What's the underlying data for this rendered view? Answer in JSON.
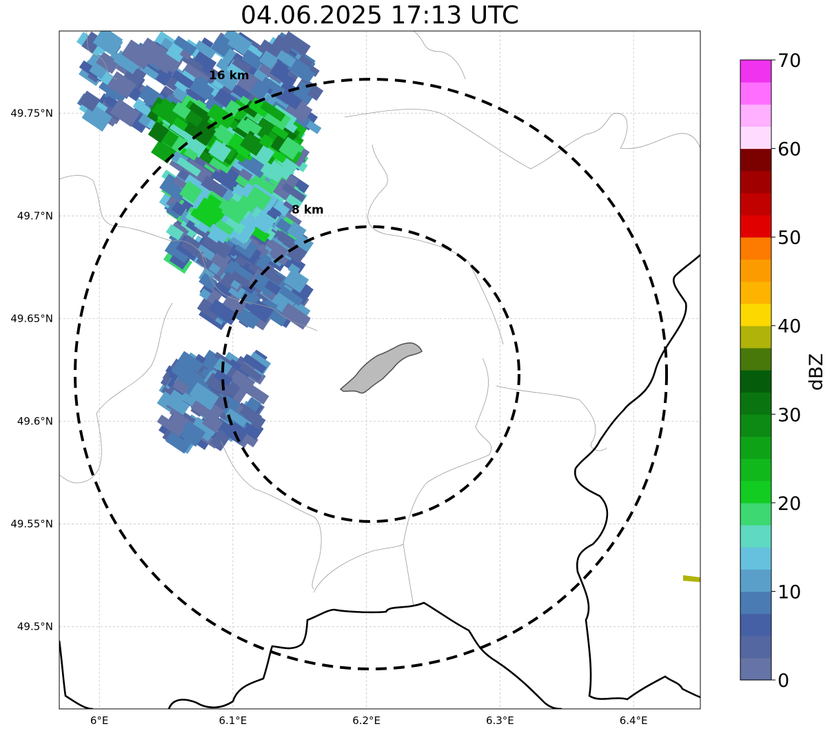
{
  "title": "04.06.2025 17:13 UTC",
  "map": {
    "lon_range": [
      5.97,
      6.45
    ],
    "lat_range": [
      49.46,
      49.79
    ],
    "lon_ticks": [
      {
        "value": 6.0,
        "label": "6°E"
      },
      {
        "value": 6.1,
        "label": "6.1°E"
      },
      {
        "value": 6.2,
        "label": "6.2°E"
      },
      {
        "value": 6.3,
        "label": "6.3°E"
      },
      {
        "value": 6.4,
        "label": "6.4°E"
      }
    ],
    "lat_ticks": [
      {
        "value": 49.75,
        "label": "49.75°N"
      },
      {
        "value": 49.7,
        "label": "49.7°N"
      },
      {
        "value": 49.65,
        "label": "49.65°N"
      },
      {
        "value": 49.6,
        "label": "49.6°N"
      },
      {
        "value": 49.55,
        "label": "49.55°N"
      },
      {
        "value": 49.5,
        "label": "49.5°N"
      }
    ],
    "grid": true,
    "range_rings": [
      {
        "label": "16 km",
        "radius_km": 16
      },
      {
        "label": "8 km",
        "radius_km": 8
      }
    ],
    "center": {
      "lon": 6.203,
      "lat": 49.623
    }
  },
  "colorbar": {
    "label": "dBZ",
    "min": 0,
    "max": 70,
    "tick_labels": [
      "0",
      "10",
      "20",
      "30",
      "40",
      "50",
      "60",
      "70"
    ],
    "colors": [
      "#6573a6",
      "#5567a0",
      "#4660a5",
      "#4a7bb3",
      "#5a9fc9",
      "#65c1de",
      "#5fd9c2",
      "#3dd871",
      "#12cc22",
      "#11b81b",
      "#0ea317",
      "#0c8a13",
      "#0a7510",
      "#055d0b",
      "#477809",
      "#afb30a",
      "#fdd800",
      "#fdb300",
      "#fc9b00",
      "#fc7b00",
      "#e10000",
      "#c10000",
      "#a00000",
      "#7b0000",
      "#ffdcff",
      "#ffb0ff",
      "#ff6eff",
      "#ef33ef"
    ]
  }
}
